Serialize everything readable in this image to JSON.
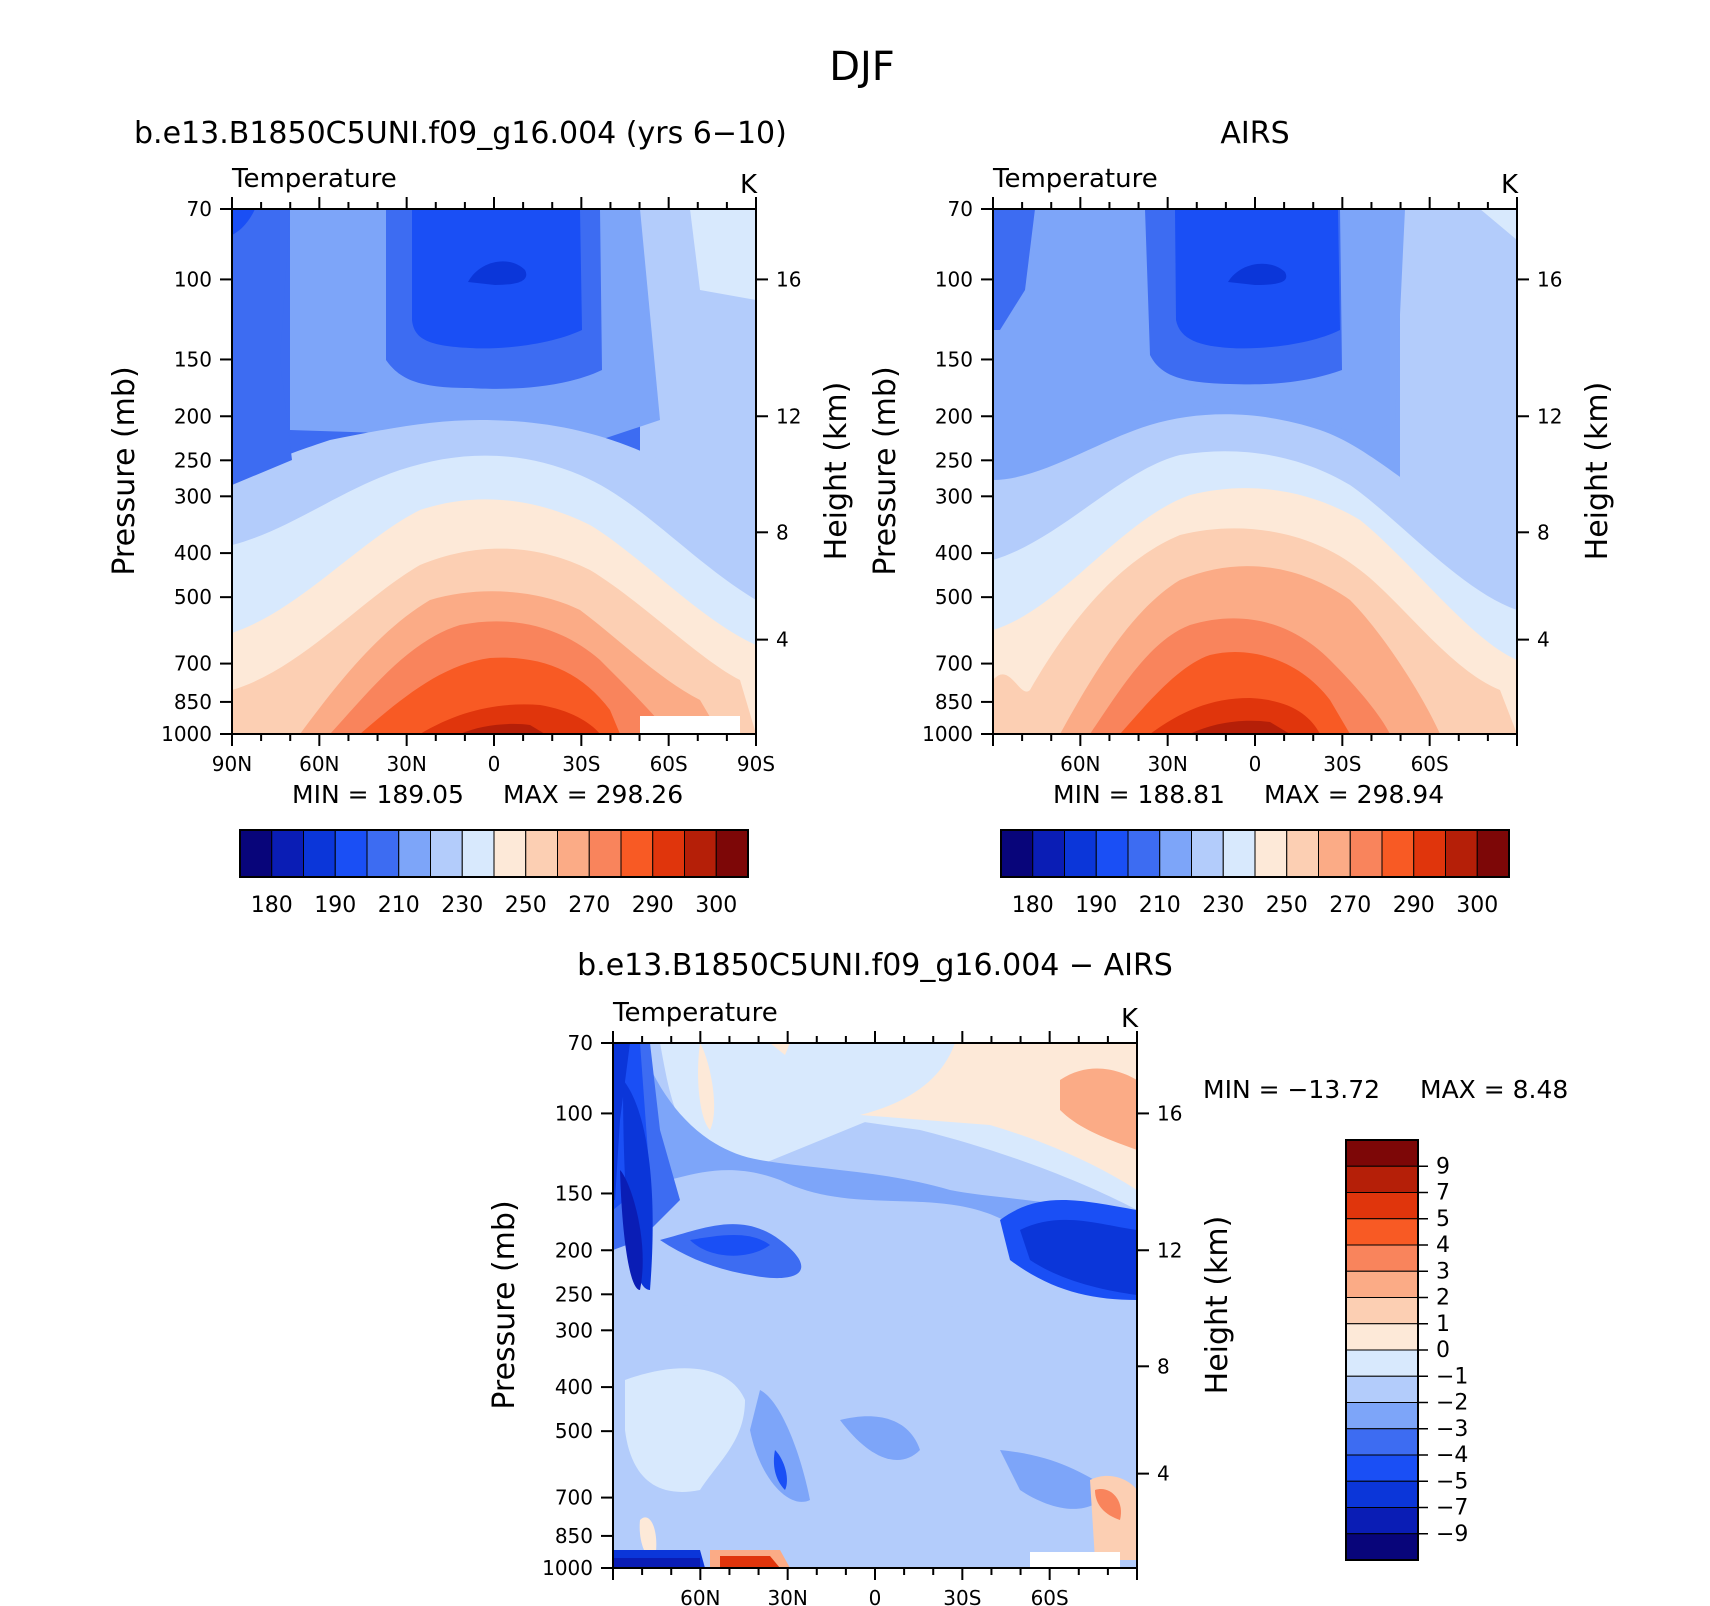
{
  "figure_title": "DJF",
  "colorbar_abs": {
    "colors": [
      "#08057a",
      "#0a1db5",
      "#0b36d9",
      "#1a4ff5",
      "#3d6cf2",
      "#7da5f9",
      "#b3ccfb",
      "#d8e9fd",
      "#fde9d8",
      "#fccfb3",
      "#fbab86",
      "#f9845c",
      "#f85a24",
      "#e0350c",
      "#b51f08",
      "#7d0707"
    ],
    "labels": [
      "180",
      "190",
      "210",
      "230",
      "250",
      "270",
      "290",
      "300"
    ]
  },
  "colorbar_diff": {
    "colors": [
      "#08057a",
      "#0a1db5",
      "#0b36d9",
      "#1a4ff5",
      "#3d6cf2",
      "#7da5f9",
      "#b3ccfb",
      "#d8e9fd",
      "#fde9d8",
      "#fccfb3",
      "#fbab86",
      "#f9845c",
      "#f85a24",
      "#e0350c",
      "#b51f08",
      "#7d0707"
    ],
    "labels": [
      "9",
      "7",
      "5",
      "4",
      "3",
      "2",
      "1",
      "0",
      "−1",
      "−2",
      "−3",
      "−4",
      "−5",
      "−7",
      "−9"
    ]
  },
  "chart_data": [
    {
      "type": "contour",
      "title": "b.e13.B1850C5UNI.f09_g16.004 (yrs  6−10)",
      "subtitle": "Temperature",
      "units": "K",
      "xlabel": "",
      "ylabel": "Pressure (mb)",
      "ylabel_right": "Height (km)",
      "x_ticks": [
        "90N",
        "60N",
        "30N",
        "0",
        "30S",
        "60S",
        "90S"
      ],
      "y_ticks": [
        "70",
        "100",
        "150",
        "200",
        "250",
        "300",
        "400",
        "500",
        "700",
        "850",
        "1000"
      ],
      "y_right_ticks": [
        "16",
        "12",
        "8",
        "4"
      ],
      "ylim": [
        1000,
        70
      ],
      "y_scale": "log",
      "min_label": "MIN =  189.05",
      "max_label": "MAX =  298.26",
      "min": 189.05,
      "max": 298.26
    },
    {
      "type": "contour",
      "title": "AIRS",
      "subtitle": "Temperature",
      "units": "K",
      "xlabel": "",
      "ylabel": "Pressure (mb)",
      "ylabel_right": "Height (km)",
      "x_ticks": [
        "60N",
        "30N",
        "0",
        "30S",
        "60S"
      ],
      "y_ticks": [
        "70",
        "100",
        "150",
        "200",
        "250",
        "300",
        "400",
        "500",
        "700",
        "850",
        "1000"
      ],
      "y_right_ticks": [
        "16",
        "12",
        "8",
        "4"
      ],
      "ylim": [
        1000,
        70
      ],
      "y_scale": "log",
      "min_label": "MIN =  188.81",
      "max_label": "MAX =  298.94",
      "min": 188.81,
      "max": 298.94
    },
    {
      "type": "contour",
      "title": "b.e13.B1850C5UNI.f09_g16.004 − AIRS",
      "subtitle": "Temperature",
      "units": "K",
      "xlabel": "",
      "ylabel": "Pressure (mb)",
      "ylabel_right": "Height (km)",
      "x_ticks": [
        "60N",
        "30N",
        "0",
        "30S",
        "60S"
      ],
      "y_ticks": [
        "70",
        "100",
        "150",
        "200",
        "250",
        "300",
        "400",
        "500",
        "700",
        "850",
        "1000"
      ],
      "y_right_ticks": [
        "16",
        "12",
        "8",
        "4"
      ],
      "ylim": [
        1000,
        70
      ],
      "y_scale": "log",
      "min_label": "MIN = −13.72",
      "max_label": "MAX =    8.48",
      "min": -13.72,
      "max": 8.48
    }
  ]
}
